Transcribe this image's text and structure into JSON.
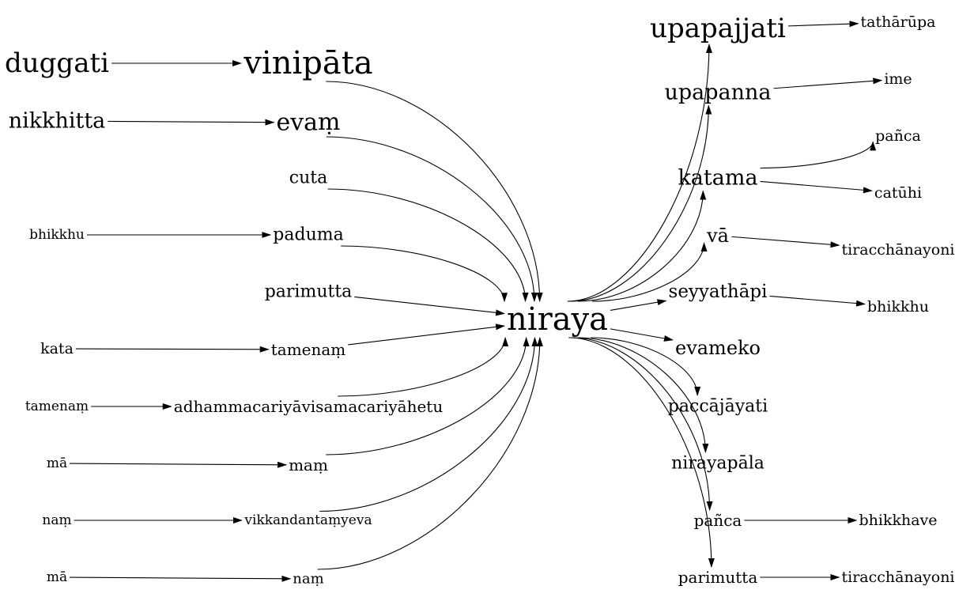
{
  "graph": {
    "center": "niraya",
    "nodes": {
      "duggati": "duggati",
      "vinipata": "vinipāta",
      "nikkhitta": "nikkhitta",
      "evam": "evaṃ",
      "cuta": "cuta",
      "bhikkhu_left": "bhikkhu",
      "paduma": "paduma",
      "parimutta_left": "parimutta",
      "kata": "kata",
      "tamenam_mid": "tamenaṃ",
      "tamenam_left": "tamenaṃ",
      "adhamma": "adhammacariyāvisamacariyāhetu",
      "ma1": "mā",
      "mam": "maṃ",
      "nam_left": "naṃ",
      "vikkandantam": "vikkandantaṃyeva",
      "ma2": "mā",
      "nam_mid": "naṃ",
      "niraya": "niraya",
      "upapajjati": "upapajjati",
      "tatharupa": "tathārūpa",
      "upapanna": "upapanna",
      "ime": "ime",
      "katama": "katama",
      "panca_top": "pañca",
      "catuhi": "catūhi",
      "va": "vā",
      "tiracchana_top": "tiracchānayoni",
      "seyyathapi": "seyyathāpi",
      "bhikkhu_right": "bhikkhu",
      "evameko": "evameko",
      "paccajayati": "paccājāyati",
      "nirayapala": "nirayapāla",
      "panca_bottom": "pañca",
      "bhikkhave": "bhikkhave",
      "parimutta_right": "parimutta",
      "tiracchana_bottom": "tiracchānayoni"
    },
    "edges": [
      [
        "duggati",
        "vinipata"
      ],
      [
        "nikkhitta",
        "evam"
      ],
      [
        "bhikkhu_left",
        "paduma"
      ],
      [
        "kata",
        "tamenam_mid"
      ],
      [
        "tamenam_left",
        "adhamma"
      ],
      [
        "ma1",
        "mam"
      ],
      [
        "nam_left",
        "vikkandantam"
      ],
      [
        "ma2",
        "nam_mid"
      ],
      [
        "vinipata",
        "niraya"
      ],
      [
        "evam",
        "niraya"
      ],
      [
        "cuta",
        "niraya"
      ],
      [
        "paduma",
        "niraya"
      ],
      [
        "parimutta_left",
        "niraya"
      ],
      [
        "tamenam_mid",
        "niraya"
      ],
      [
        "adhamma",
        "niraya"
      ],
      [
        "mam",
        "niraya"
      ],
      [
        "vikkandantam",
        "niraya"
      ],
      [
        "nam_mid",
        "niraya"
      ],
      [
        "niraya",
        "upapajjati"
      ],
      [
        "niraya",
        "upapanna"
      ],
      [
        "niraya",
        "katama"
      ],
      [
        "niraya",
        "va"
      ],
      [
        "niraya",
        "seyyathapi"
      ],
      [
        "niraya",
        "evameko"
      ],
      [
        "niraya",
        "paccajayati"
      ],
      [
        "niraya",
        "nirayapala"
      ],
      [
        "niraya",
        "panca_bottom"
      ],
      [
        "niraya",
        "parimutta_right"
      ],
      [
        "upapajjati",
        "tatharupa"
      ],
      [
        "upapanna",
        "ime"
      ],
      [
        "katama",
        "panca_top"
      ],
      [
        "katama",
        "catuhi"
      ],
      [
        "va",
        "tiracchana_top"
      ],
      [
        "seyyathapi",
        "bhikkhu_right"
      ],
      [
        "panca_bottom",
        "bhikkhave"
      ],
      [
        "parimutta_right",
        "tiracchana_bottom"
      ]
    ]
  }
}
